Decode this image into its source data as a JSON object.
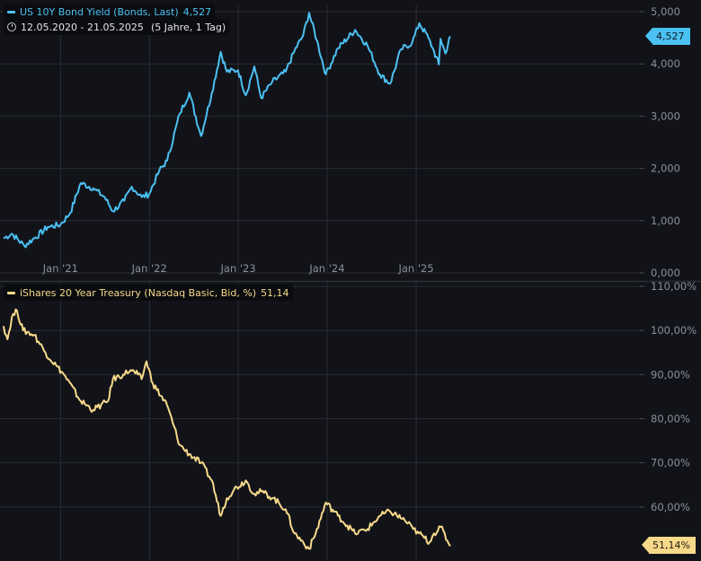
{
  "colors": {
    "background": "#121319",
    "grid": "#2a2c34",
    "axis_text": "#8b8f99",
    "yield": "#4bc1f2",
    "treasury": "#f7d98a",
    "separator": "#2d2f37"
  },
  "top_panel": {
    "legend_title": "US 10Y Bond Yield (Bonds, Last)",
    "legend_value": "4,527",
    "date_range": "12.05.2020 - 21.05.2025",
    "period": "(5 Jahre, 1 Tag)",
    "icon": "clock-icon",
    "last_value_badge": "4,527"
  },
  "bottom_panel": {
    "legend_title": "iShares 20 Year Treasury (Nasdaq Basic, Bid, %)",
    "legend_value": "51,14",
    "last_value_badge": "51,14%"
  },
  "chart_data": [
    {
      "type": "line",
      "series": [
        {
          "name": "US 10Y Bond Yield (Bonds, Last)",
          "x": [
            "2020-05-12",
            "2020-06-15",
            "2020-08-05",
            "2020-09-20",
            "2020-11-10",
            "2020-12-31",
            "2021-02-10",
            "2021-03-25",
            "2021-05-15",
            "2021-07-01",
            "2021-08-04",
            "2021-09-20",
            "2021-10-21",
            "2021-12-01",
            "2021-12-31",
            "2022-02-10",
            "2022-03-15",
            "2022-05-06",
            "2022-06-14",
            "2022-08-01",
            "2022-09-15",
            "2022-10-21",
            "2022-11-15",
            "2022-12-31",
            "2023-02-01",
            "2023-03-08",
            "2023-04-05",
            "2023-05-20",
            "2023-07-15",
            "2023-08-20",
            "2023-09-25",
            "2023-10-19",
            "2023-11-20",
            "2023-12-27",
            "2024-02-15",
            "2024-04-25",
            "2024-06-15",
            "2024-08-05",
            "2024-09-16",
            "2024-10-31",
            "2024-12-15",
            "2025-01-14",
            "2025-02-20",
            "2025-03-10",
            "2025-04-04",
            "2025-04-11",
            "2025-05-01",
            "2025-05-21"
          ],
          "values": [
            0.66,
            0.75,
            0.52,
            0.68,
            0.88,
            0.92,
            1.15,
            1.72,
            1.62,
            1.45,
            1.18,
            1.38,
            1.65,
            1.45,
            1.51,
            1.95,
            2.15,
            3.05,
            3.45,
            2.62,
            3.45,
            4.23,
            3.85,
            3.88,
            3.4,
            3.95,
            3.35,
            3.65,
            3.85,
            4.25,
            4.55,
            4.98,
            4.45,
            3.8,
            4.3,
            4.65,
            4.35,
            3.8,
            3.62,
            4.28,
            4.4,
            4.78,
            4.5,
            4.3,
            3.99,
            4.48,
            4.2,
            4.527
          ]
        }
      ],
      "y_ticks": [
        "0,000",
        "1,000",
        "2,000",
        "3,000",
        "4,000",
        "5,000"
      ],
      "ylim": [
        0,
        5
      ],
      "x_ticks": [
        "Jan '21",
        "Jan '22",
        "Jan '23",
        "Jan '24",
        "Jan '25"
      ],
      "grid": true
    },
    {
      "type": "line",
      "series": [
        {
          "name": "iShares 20 Year Treasury (Nasdaq Basic, Bid, %)",
          "x": [
            "2020-05-12",
            "2020-05-28",
            "2020-06-15",
            "2020-07-06",
            "2020-07-31",
            "2020-09-15",
            "2020-10-31",
            "2020-12-15",
            "2021-01-15",
            "2021-03-25",
            "2021-05-15",
            "2021-07-15",
            "2021-08-04",
            "2021-09-15",
            "2021-10-15",
            "2021-11-15",
            "2021-11-30",
            "2021-12-20",
            "2022-01-15",
            "2022-03-15",
            "2022-05-06",
            "2022-06-14",
            "2022-08-01",
            "2022-09-15",
            "2022-10-21",
            "2022-11-15",
            "2022-12-15",
            "2023-02-01",
            "2023-03-08",
            "2023-04-06",
            "2023-05-25",
            "2023-07-15",
            "2023-08-20",
            "2023-09-25",
            "2023-10-19",
            "2023-11-15",
            "2023-12-27",
            "2024-02-15",
            "2024-04-25",
            "2024-06-15",
            "2024-08-05",
            "2024-09-16",
            "2024-11-15",
            "2024-12-20",
            "2025-01-13",
            "2025-02-25",
            "2025-03-15",
            "2025-04-11",
            "2025-05-21"
          ],
          "values": [
            101,
            98,
            103,
            104.5,
            100,
            99,
            95,
            92,
            90,
            84,
            82,
            84,
            89,
            90,
            91,
            90,
            89,
            93,
            88,
            83,
            74,
            72,
            70,
            66,
            58,
            62,
            64,
            66,
            63,
            63.5,
            62,
            59.5,
            54,
            52,
            50.5,
            54,
            61,
            58,
            54,
            55,
            58,
            59,
            57,
            55,
            54,
            52,
            54,
            55.5,
            51.14
          ]
        }
      ],
      "y_ticks": [
        "60,00%",
        "70,00%",
        "80,00%",
        "90,00%",
        "100,00%",
        "110,00%"
      ],
      "ylim": [
        50,
        110
      ],
      "x_ticks": [
        "Jan '21",
        "Jan '22",
        "Jan '23",
        "Jan '24",
        "Jan '25"
      ],
      "grid": true
    }
  ]
}
